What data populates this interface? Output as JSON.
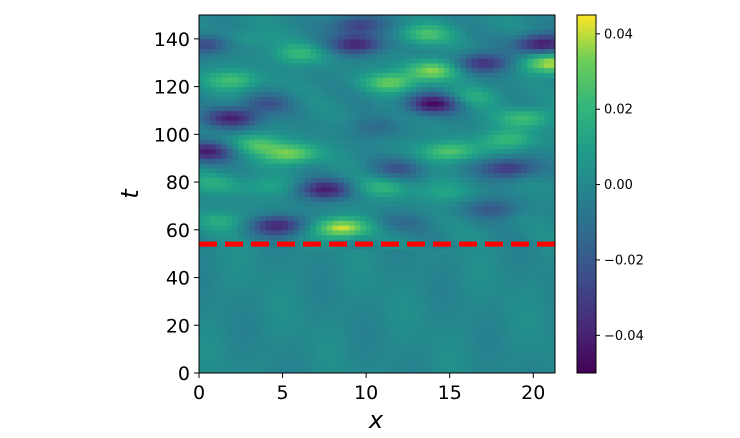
{
  "chart_data": {
    "type": "heatmap",
    "title": "",
    "xlabel": "x",
    "ylabel": "t",
    "xlim": [
      0,
      21.3
    ],
    "ylim": [
      0,
      150
    ],
    "x_ticks": [
      "0",
      "5",
      "10",
      "15",
      "20"
    ],
    "y_ticks": [
      "0",
      "20",
      "40",
      "60",
      "80",
      "100",
      "120",
      "140"
    ],
    "colormap": "viridis",
    "colorbar": {
      "vmin": -0.05,
      "vmax": 0.045,
      "ticks": [
        "−0.04",
        "−0.02",
        "0.00",
        "0.02",
        "0.04"
      ]
    },
    "threshold_line": {
      "t": 54,
      "color": "#ff0000",
      "style": "dashed"
    },
    "features": [
      {
        "x": 14.0,
        "t": 127,
        "value": 0.035
      },
      {
        "x": 11.5,
        "t": 122,
        "value": 0.03
      },
      {
        "x": 21.0,
        "t": 130,
        "value": 0.04
      },
      {
        "x": 2.0,
        "t": 123,
        "value": 0.025
      },
      {
        "x": 6.0,
        "t": 134,
        "value": 0.02
      },
      {
        "x": 2.5,
        "t": 140,
        "value": 0.012
      },
      {
        "x": 13.5,
        "t": 142,
        "value": 0.025
      },
      {
        "x": 9.5,
        "t": 138,
        "value": -0.04
      },
      {
        "x": 9.5,
        "t": 146,
        "value": -0.03
      },
      {
        "x": 20.5,
        "t": 138,
        "value": -0.045
      },
      {
        "x": 0.5,
        "t": 138,
        "value": -0.03
      },
      {
        "x": 17.0,
        "t": 130,
        "value": -0.035
      },
      {
        "x": 14.0,
        "t": 113,
        "value": -0.045
      },
      {
        "x": 2.0,
        "t": 107,
        "value": -0.04
      },
      {
        "x": 4.0,
        "t": 113,
        "value": -0.02
      },
      {
        "x": 19.5,
        "t": 107,
        "value": 0.025
      },
      {
        "x": 16.5,
        "t": 116,
        "value": 0.015
      },
      {
        "x": 10.5,
        "t": 103,
        "value": -0.012
      },
      {
        "x": 0.5,
        "t": 93,
        "value": -0.04
      },
      {
        "x": 5.5,
        "t": 92,
        "value": 0.035
      },
      {
        "x": 3.5,
        "t": 96,
        "value": 0.025
      },
      {
        "x": 15.0,
        "t": 93,
        "value": 0.03
      },
      {
        "x": 18.5,
        "t": 98,
        "value": 0.022
      },
      {
        "x": 18.5,
        "t": 86,
        "value": -0.035
      },
      {
        "x": 12.0,
        "t": 86,
        "value": -0.02
      },
      {
        "x": 7.5,
        "t": 77,
        "value": -0.04
      },
      {
        "x": 1.0,
        "t": 80,
        "value": 0.015
      },
      {
        "x": 4.0,
        "t": 78,
        "value": 0.012
      },
      {
        "x": 11.0,
        "t": 78,
        "value": 0.018
      },
      {
        "x": 14.5,
        "t": 76,
        "value": 0.012
      },
      {
        "x": 17.5,
        "t": 69,
        "value": -0.02
      },
      {
        "x": 8.5,
        "t": 61,
        "value": 0.045
      },
      {
        "x": 4.8,
        "t": 62,
        "value": -0.04
      },
      {
        "x": 1.5,
        "t": 64,
        "value": 0.015
      },
      {
        "x": 12.0,
        "t": 63,
        "value": -0.012
      }
    ]
  }
}
